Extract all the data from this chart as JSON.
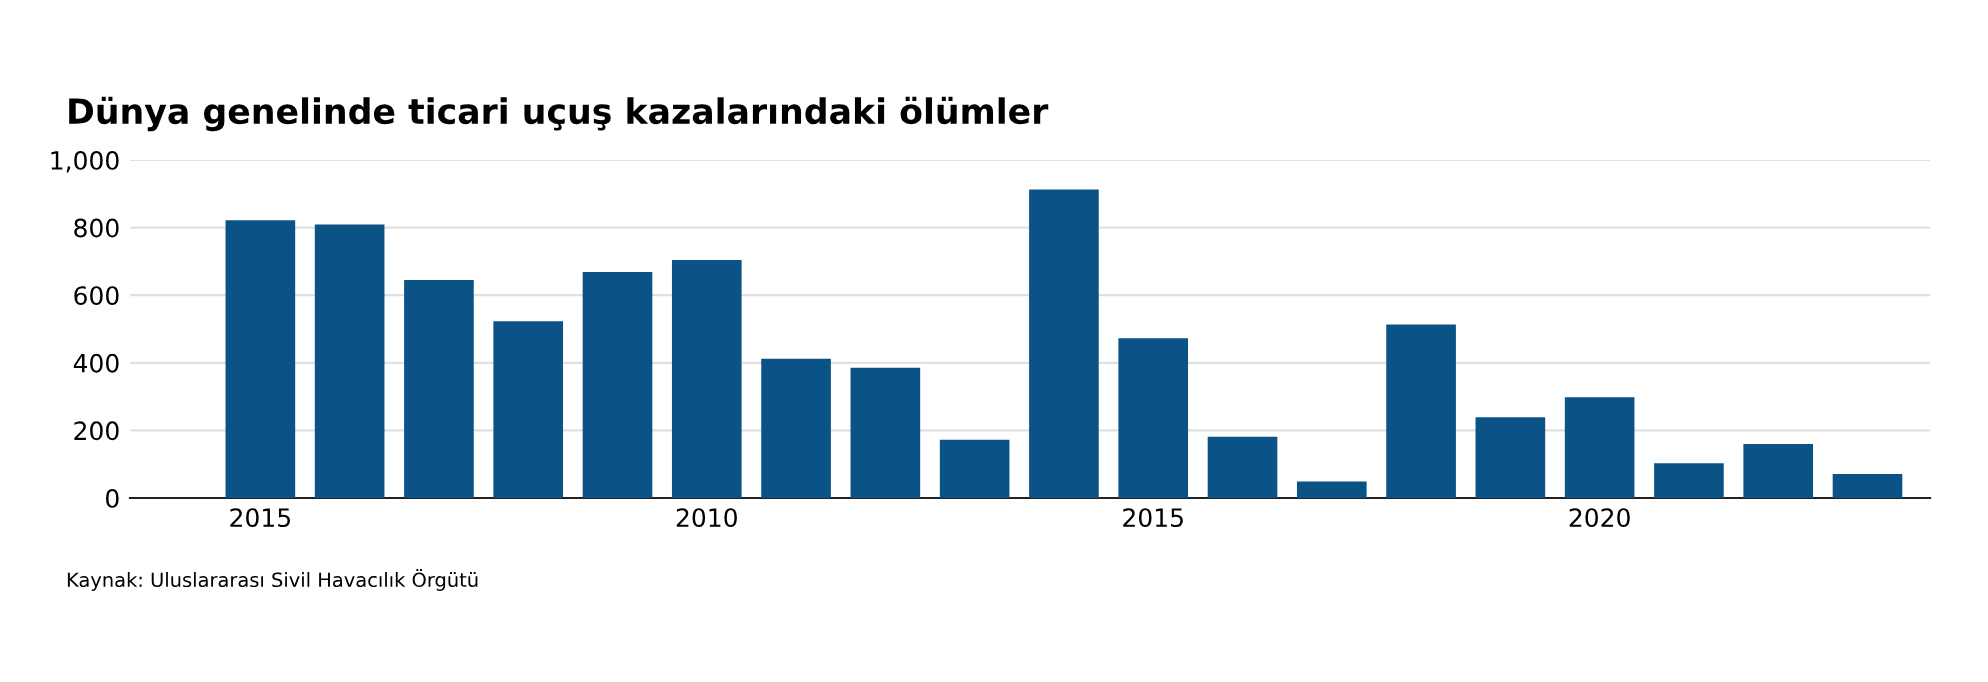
{
  "chart_data": {
    "type": "bar",
    "title": "Dünya genelinde ticari uçuş kazalarındaki ölümler",
    "categories": [
      "2015",
      null,
      null,
      null,
      null,
      "2010",
      null,
      null,
      null,
      null,
      "2015",
      null,
      null,
      null,
      null,
      "2020",
      null,
      null,
      null
    ],
    "values": [
      822,
      809,
      645,
      523,
      669,
      704,
      412,
      385,
      172,
      913,
      473,
      181,
      49,
      513,
      239,
      298,
      103,
      160,
      71
    ],
    "color": "#0b5387",
    "ylim": [
      0,
      1000
    ],
    "yticks": [
      0,
      200,
      400,
      600,
      800,
      {
        "value": 1000,
        "label": "1,000"
      }
    ],
    "grid": "y",
    "annotations": [
      "Kaynak: Uluslararası Sivil Havacılık Örgütü"
    ]
  }
}
